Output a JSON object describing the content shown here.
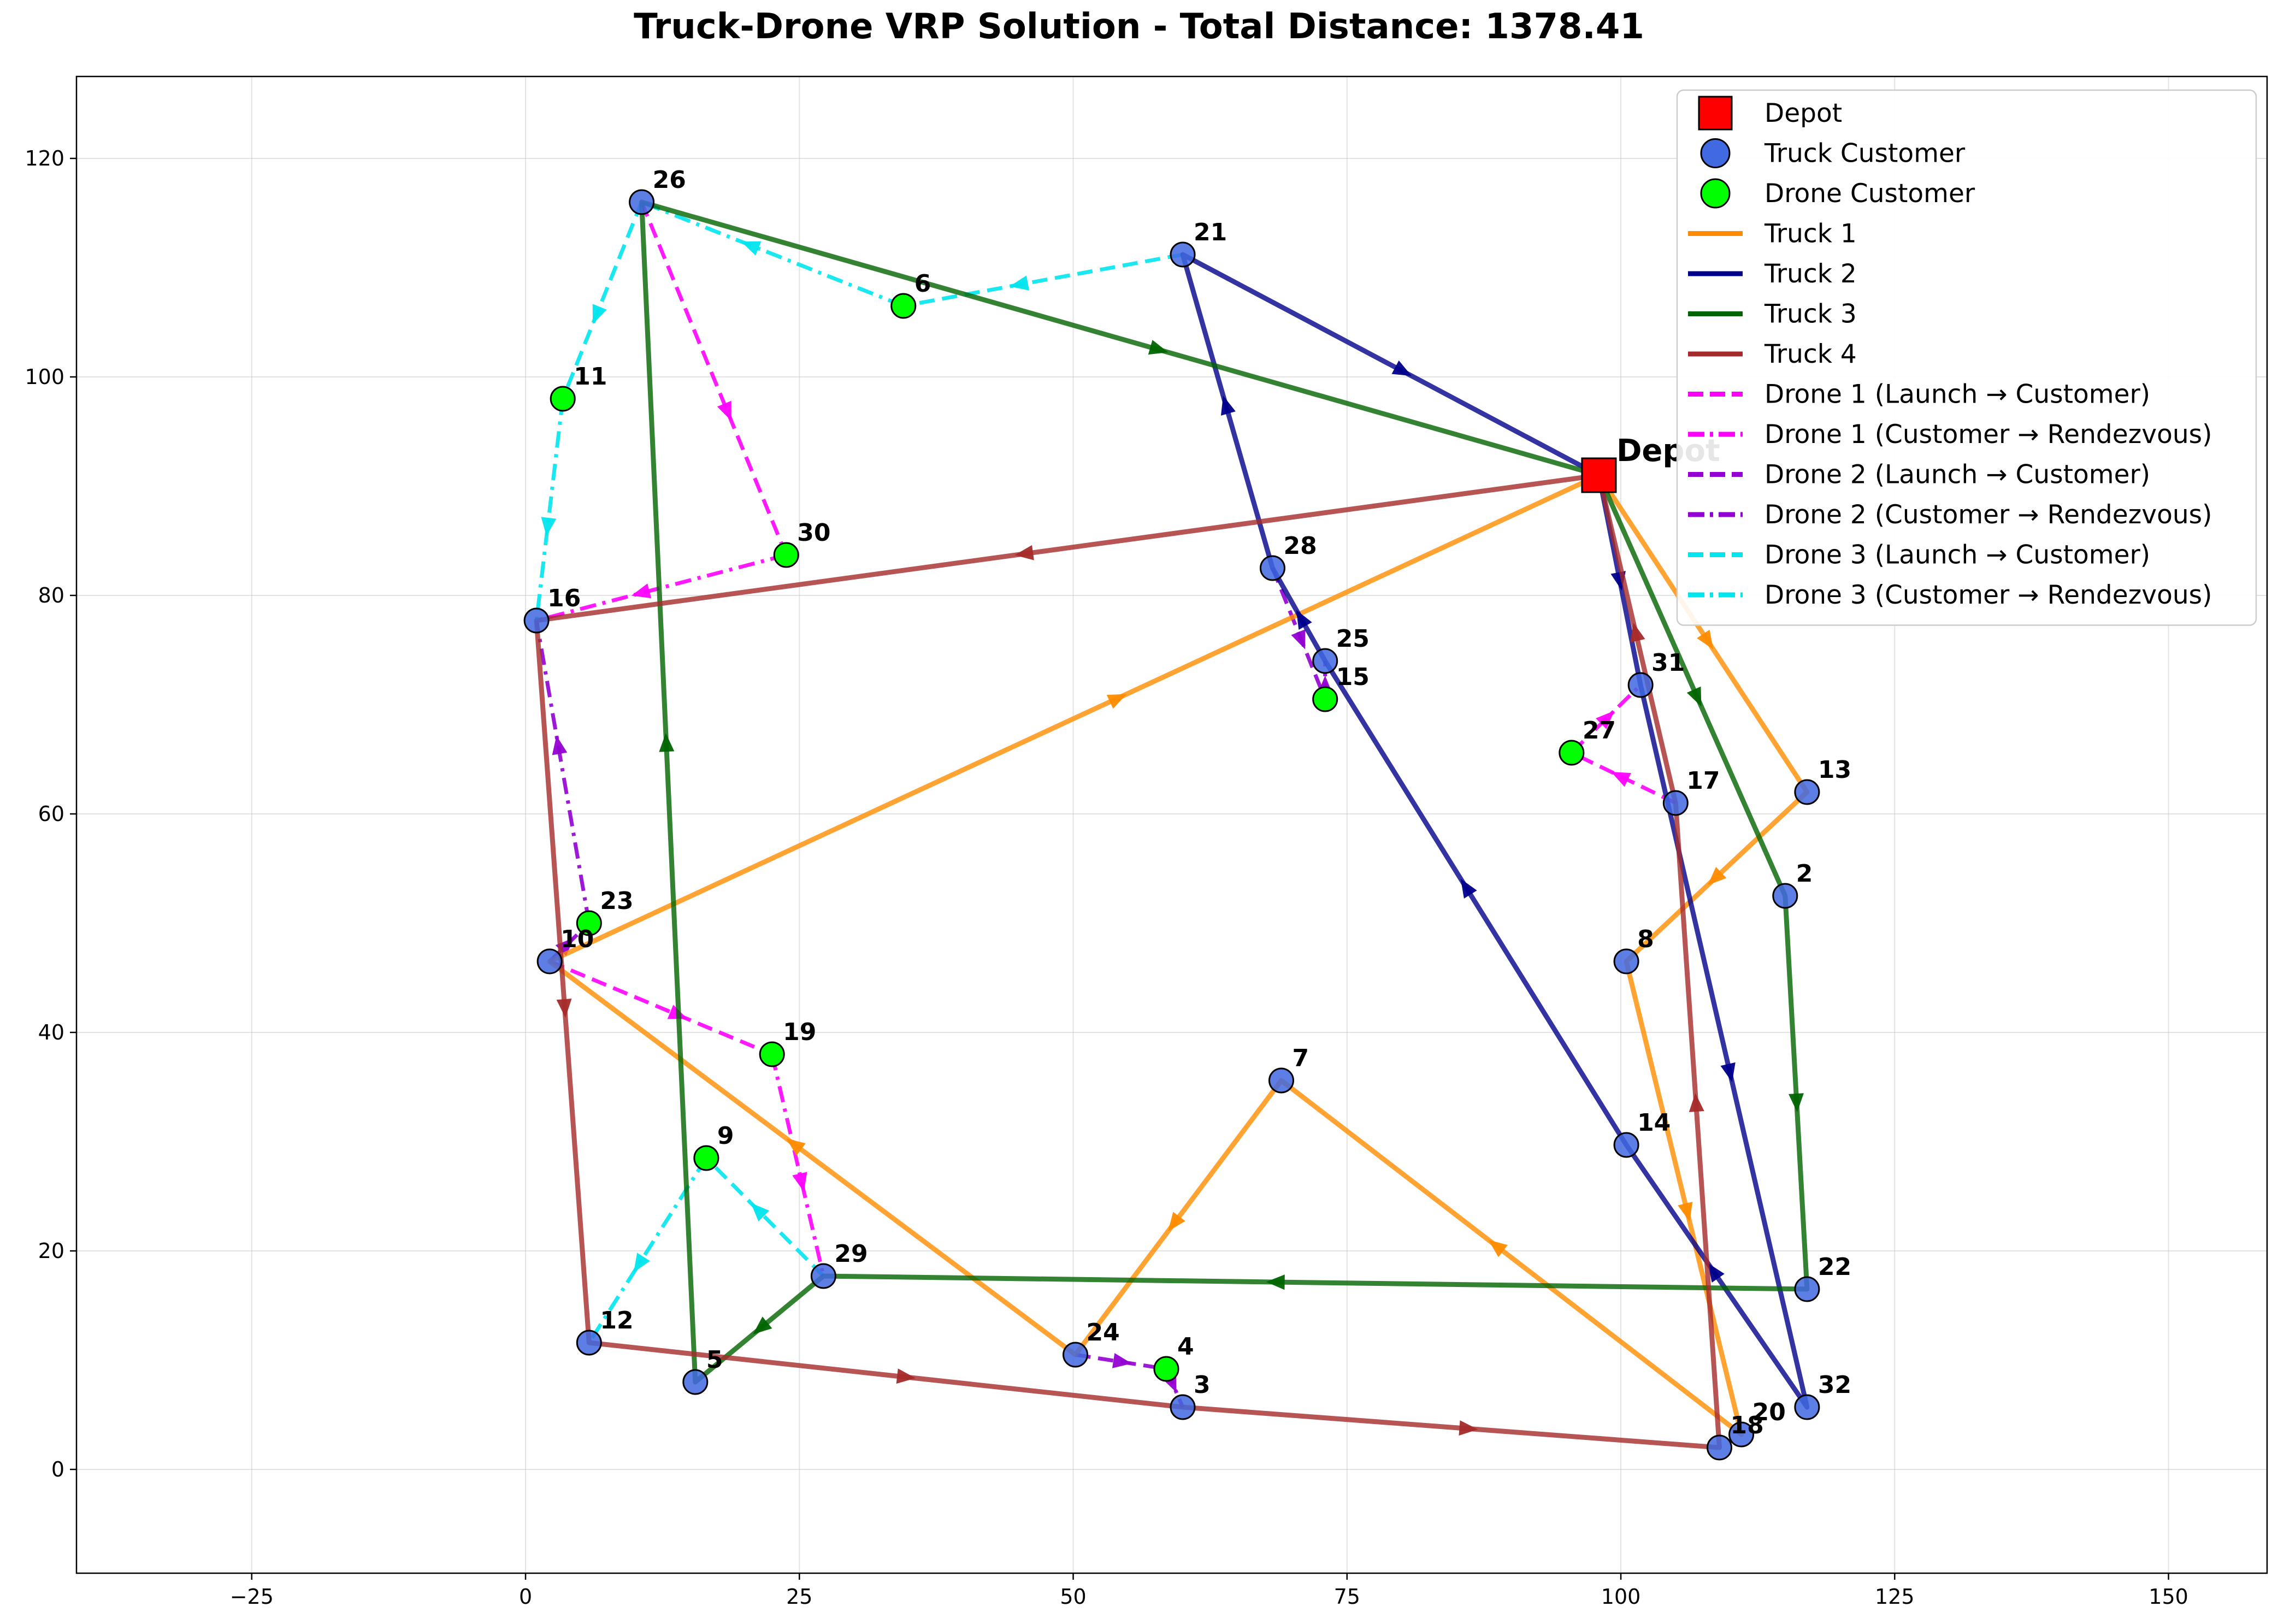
{
  "chart_data": {
    "type": "scatter",
    "title": "Truck-Drone VRP Solution - Total Distance: 1378.41",
    "xlabel": "",
    "ylabel": "",
    "xlim": [
      -41,
      159
    ],
    "ylim": [
      -9.5,
      127.5
    ],
    "x_ticks": [
      -25,
      0,
      25,
      50,
      75,
      100,
      125,
      150
    ],
    "y_ticks": [
      0,
      20,
      40,
      60,
      80,
      100,
      120
    ],
    "grid": true,
    "legend_position": "upper right",
    "depot": {
      "label": "Depot",
      "x": 98,
      "y": 91
    },
    "nodes": [
      {
        "id": "2",
        "x": 115,
        "y": 52.5,
        "kind": "truck"
      },
      {
        "id": "3",
        "x": 60,
        "y": 5.7,
        "kind": "truck"
      },
      {
        "id": "4",
        "x": 58.5,
        "y": 9.2,
        "kind": "drone"
      },
      {
        "id": "5",
        "x": 15.5,
        "y": 8,
        "kind": "truck"
      },
      {
        "id": "6",
        "x": 34.5,
        "y": 106.5,
        "kind": "drone"
      },
      {
        "id": "7",
        "x": 69,
        "y": 35.6,
        "kind": "truck"
      },
      {
        "id": "8",
        "x": 100.5,
        "y": 46.5,
        "kind": "truck"
      },
      {
        "id": "9",
        "x": 16.5,
        "y": 28.5,
        "kind": "drone"
      },
      {
        "id": "10",
        "x": 2.2,
        "y": 46.5,
        "kind": "truck"
      },
      {
        "id": "11",
        "x": 3.4,
        "y": 98,
        "kind": "drone"
      },
      {
        "id": "12",
        "x": 5.8,
        "y": 11.6,
        "kind": "truck"
      },
      {
        "id": "13",
        "x": 117,
        "y": 62,
        "kind": "truck"
      },
      {
        "id": "14",
        "x": 100.5,
        "y": 29.7,
        "kind": "truck"
      },
      {
        "id": "15",
        "x": 73,
        "y": 70.5,
        "kind": "drone"
      },
      {
        "id": "16",
        "x": 1,
        "y": 77.7,
        "kind": "truck"
      },
      {
        "id": "17",
        "x": 105,
        "y": 61,
        "kind": "truck"
      },
      {
        "id": "18",
        "x": 109,
        "y": 2,
        "kind": "truck"
      },
      {
        "id": "19",
        "x": 22.5,
        "y": 38,
        "kind": "drone"
      },
      {
        "id": "20",
        "x": 111,
        "y": 3.2,
        "kind": "truck"
      },
      {
        "id": "21",
        "x": 60,
        "y": 111.2,
        "kind": "truck"
      },
      {
        "id": "22",
        "x": 117,
        "y": 16.5,
        "kind": "truck"
      },
      {
        "id": "23",
        "x": 5.8,
        "y": 50,
        "kind": "drone"
      },
      {
        "id": "24",
        "x": 50.2,
        "y": 10.5,
        "kind": "truck"
      },
      {
        "id": "25",
        "x": 73,
        "y": 74,
        "kind": "truck"
      },
      {
        "id": "26",
        "x": 10.6,
        "y": 116,
        "kind": "truck"
      },
      {
        "id": "27",
        "x": 95.5,
        "y": 65.6,
        "kind": "drone"
      },
      {
        "id": "28",
        "x": 68.2,
        "y": 82.5,
        "kind": "truck"
      },
      {
        "id": "29",
        "x": 27.2,
        "y": 17.7,
        "kind": "truck"
      },
      {
        "id": "30",
        "x": 23.8,
        "y": 83.7,
        "kind": "drone"
      },
      {
        "id": "31",
        "x": 101.8,
        "y": 71.8,
        "kind": "truck"
      },
      {
        "id": "32",
        "x": 117,
        "y": 5.7,
        "kind": "truck"
      }
    ],
    "truck_routes": [
      {
        "name": "Truck 1",
        "color": "#ff8c00",
        "path": [
          "Depot",
          "13",
          "8",
          "20",
          "7",
          "24",
          "10",
          "Depot"
        ]
      },
      {
        "name": "Truck 2",
        "color": "#00008b",
        "path": [
          "Depot",
          "31",
          "32",
          "14",
          "25",
          "28",
          "21",
          "Depot"
        ]
      },
      {
        "name": "Truck 3",
        "color": "#006400",
        "path": [
          "Depot",
          "2",
          "22",
          "29",
          "5",
          "26",
          "Depot"
        ]
      },
      {
        "name": "Truck 4",
        "color": "#a52a2a",
        "path": [
          "Depot",
          "16",
          "12",
          "3",
          "18",
          "17",
          "Depot"
        ]
      }
    ],
    "drone_sorties": [
      {
        "drone": "Drone 1",
        "color": "#ff00ff",
        "launch": "26",
        "customer": "30",
        "rendezvous": "16"
      },
      {
        "drone": "Drone 1",
        "color": "#ff00ff",
        "launch": "10",
        "customer": "19",
        "rendezvous": "29"
      },
      {
        "drone": "Drone 1",
        "color": "#ff00ff",
        "launch": "17",
        "customer": "27",
        "rendezvous": "31"
      },
      {
        "drone": "Drone 2",
        "color": "#9400d3",
        "launch": "10",
        "customer": "23",
        "rendezvous": "16"
      },
      {
        "drone": "Drone 2",
        "color": "#9400d3",
        "launch": "24",
        "customer": "4",
        "rendezvous": "3"
      },
      {
        "drone": "Drone 2",
        "color": "#9400d3",
        "launch": "28",
        "customer": "15",
        "rendezvous": "25"
      },
      {
        "drone": "Drone 3",
        "color": "#00e5ee",
        "launch": "26",
        "customer": "11",
        "rendezvous": "16"
      },
      {
        "drone": "Drone 3",
        "color": "#00e5ee",
        "launch": "21",
        "customer": "6",
        "rendezvous": "26"
      },
      {
        "drone": "Drone 3",
        "color": "#00e5ee",
        "launch": "29",
        "customer": "9",
        "rendezvous": "12"
      }
    ],
    "legend": [
      {
        "label": "Depot",
        "marker": "square",
        "color": "#ff0000"
      },
      {
        "label": "Truck Customer",
        "marker": "circle",
        "color": "#4169e1"
      },
      {
        "label": "Drone Customer",
        "marker": "circle",
        "color": "#00ff00"
      },
      {
        "label": "Truck 1",
        "line": "solid",
        "color": "#ff8c00"
      },
      {
        "label": "Truck 2",
        "line": "solid",
        "color": "#00008b"
      },
      {
        "label": "Truck 3",
        "line": "solid",
        "color": "#006400"
      },
      {
        "label": "Truck 4",
        "line": "solid",
        "color": "#a52a2a"
      },
      {
        "label": "Drone 1 (Launch → Customer)",
        "line": "dashed",
        "color": "#ff00ff"
      },
      {
        "label": "Drone 1 (Customer → Rendezvous)",
        "line": "dashdot",
        "color": "#ff00ff"
      },
      {
        "label": "Drone 2 (Launch → Customer)",
        "line": "dashed",
        "color": "#9400d3"
      },
      {
        "label": "Drone 2 (Customer → Rendezvous)",
        "line": "dashdot",
        "color": "#9400d3"
      },
      {
        "label": "Drone 3 (Launch → Customer)",
        "line": "dashed",
        "color": "#00e5ee"
      },
      {
        "label": "Drone 3 (Customer → Rendezvous)",
        "line": "dashdot",
        "color": "#00e5ee"
      }
    ]
  }
}
